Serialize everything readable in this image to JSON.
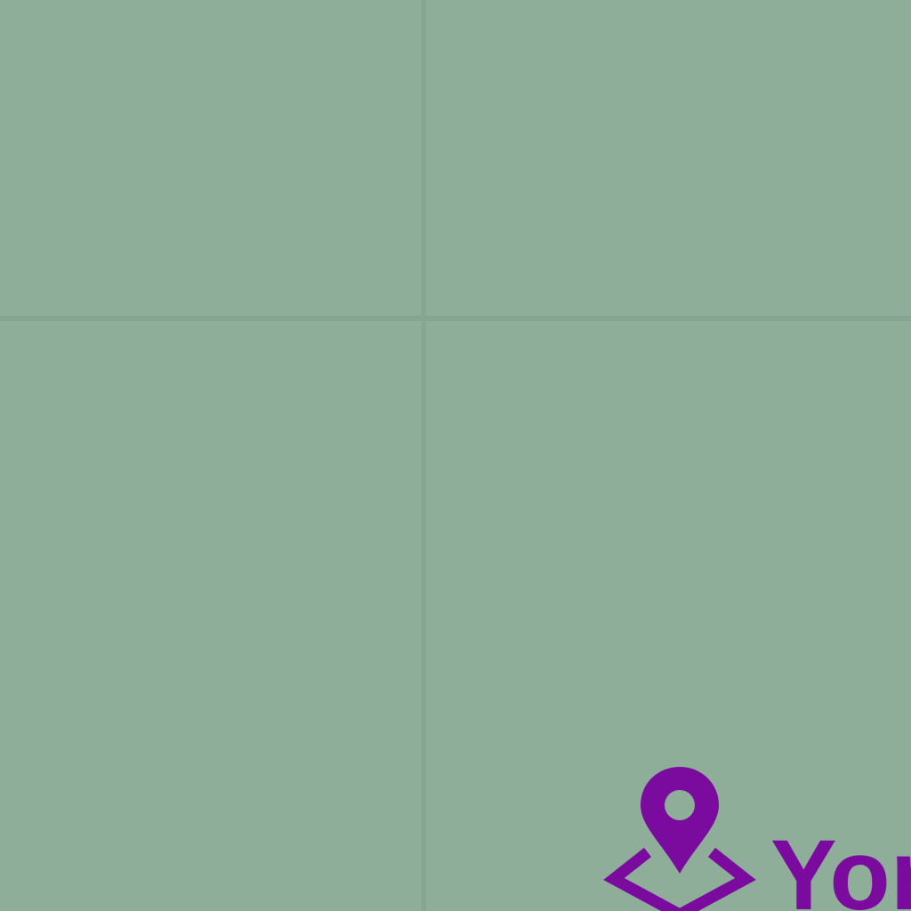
{
  "map": {
    "background_color": "#8fae9a",
    "grid_color": "#86a592",
    "marker": {
      "icon": "map-pin-icon",
      "color": "#7b0a9e"
    },
    "place_label": "Yor"
  }
}
